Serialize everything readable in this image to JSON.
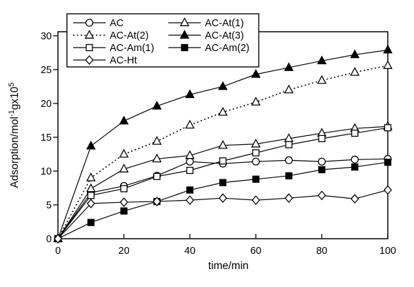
{
  "figure": {
    "background": "#ffffff",
    "stroke_color": "#000000"
  },
  "chart_data": {
    "type": "line",
    "x": [
      0,
      10,
      20,
      30,
      40,
      50,
      60,
      70,
      80,
      90,
      100
    ],
    "xlabel": "time/min",
    "ylabel": "Adsorption/mol⁻¹gx10⁵",
    "ylabel_parts": [
      {
        "t": "Adsorption/mol"
      },
      {
        "t": "-1",
        "sup": true
      },
      {
        "t": "gx10"
      },
      {
        "t": "5",
        "sup": true
      }
    ],
    "xlim": [
      0,
      100
    ],
    "ylim": [
      0,
      30.6
    ],
    "xticks": [
      0,
      20,
      40,
      60,
      80,
      100
    ],
    "yticks": [
      0,
      5,
      10,
      15,
      20,
      25,
      30
    ],
    "grid": false,
    "legend_position": "top-left-inside",
    "series": [
      {
        "name": "AC",
        "marker": "circle-open",
        "line": "solid",
        "values": [
          0,
          6.8,
          7.8,
          9.3,
          11.4,
          11.1,
          11.4,
          11.6,
          11.4,
          11.7,
          11.8
        ]
      },
      {
        "name": "AC-At(1)",
        "marker": "triangle-open",
        "line": "solid",
        "values": [
          0,
          7.4,
          10.3,
          11.8,
          12.3,
          13.8,
          14.0,
          14.8,
          15.6,
          16.3,
          16.6
        ]
      },
      {
        "name": "AC-At(2)",
        "marker": "triangle-open",
        "line": "dotted",
        "values": [
          0,
          9.0,
          12.5,
          14.4,
          16.8,
          18.7,
          20.2,
          22.0,
          23.4,
          24.6,
          25.6
        ]
      },
      {
        "name": "AC-At(3)",
        "marker": "triangle-filled",
        "line": "solid",
        "values": [
          0,
          13.7,
          17.4,
          19.6,
          21.3,
          22.5,
          24.3,
          25.3,
          26.3,
          27.2,
          27.9
        ]
      },
      {
        "name": "AC-Am(1)",
        "marker": "square-open",
        "line": "solid",
        "values": [
          0,
          6.4,
          7.4,
          9.2,
          10.1,
          11.5,
          12.7,
          13.9,
          14.8,
          15.6,
          16.4
        ]
      },
      {
        "name": "AC-Am(2)",
        "marker": "square-filled",
        "line": "solid",
        "values": [
          0,
          2.4,
          4.1,
          5.5,
          7.2,
          8.3,
          8.8,
          9.3,
          10.2,
          10.6,
          11.3
        ]
      },
      {
        "name": "AC-Ht",
        "marker": "diamond-open",
        "line": "solid",
        "values": [
          0,
          5.2,
          5.4,
          5.5,
          5.7,
          6.0,
          5.7,
          6.0,
          6.4,
          5.9,
          7.2
        ]
      }
    ],
    "legend_rows": [
      [
        "AC",
        "AC-At(1)"
      ],
      [
        "AC-At(2)",
        "AC-At(3)"
      ],
      [
        "AC-Am(1)",
        "AC-Am(2)"
      ],
      [
        "AC-Ht",
        null
      ]
    ]
  }
}
